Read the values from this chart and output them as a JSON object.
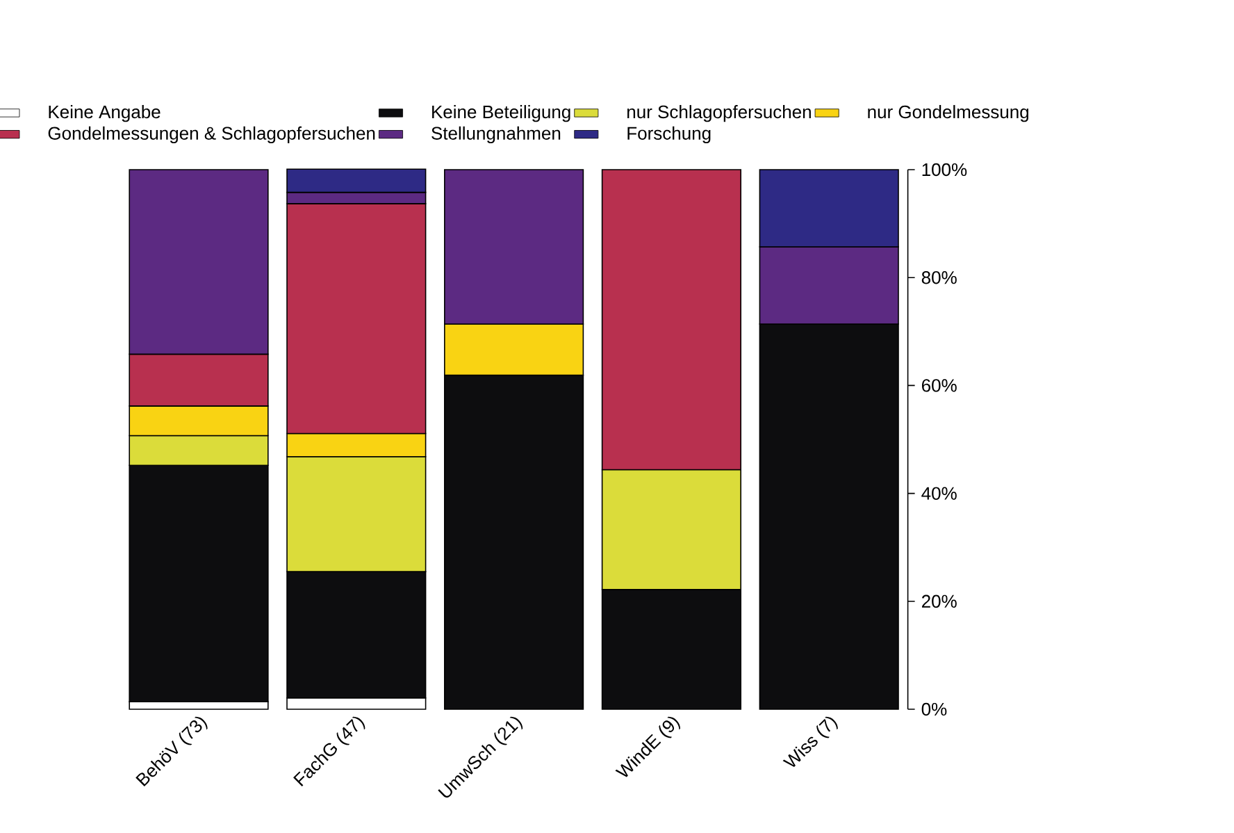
{
  "chart_data": {
    "type": "bar",
    "stacked": true,
    "legend": "top",
    "categories": [
      "BehöV (73)",
      "FachG (47)",
      "UmwSch (21)",
      "WindE (9)",
      "Wiss (7)"
    ],
    "series": [
      {
        "name": "Keine Angabe",
        "color": "#ffffff",
        "values": [
          1.4,
          2.1,
          null,
          null,
          null
        ]
      },
      {
        "name": "Keine Beteiligung",
        "color": "#0d0d0f",
        "values": [
          43.8,
          23.4,
          61.9,
          22.2,
          71.4
        ]
      },
      {
        "name": "nur Schlagopfersuchen",
        "color": "#dbdc3a",
        "values": [
          5.5,
          21.3,
          null,
          22.2,
          null
        ]
      },
      {
        "name": "nur Gondelmessung",
        "color": "#f9d313",
        "values": [
          5.5,
          4.3,
          9.5,
          null,
          null
        ]
      },
      {
        "name": "Gondelmessungen & Schlagopfersuchen",
        "color": "#b8304f",
        "values": [
          9.6,
          42.6,
          null,
          55.6,
          null
        ]
      },
      {
        "name": "Stellungnahmen",
        "color": "#5c2a82",
        "values": [
          34.2,
          2.1,
          28.6,
          null,
          14.3
        ]
      },
      {
        "name": "Forschung",
        "color": "#2e2a85",
        "values": [
          null,
          4.3,
          null,
          null,
          14.3
        ]
      }
    ],
    "ylim": [
      0,
      100
    ],
    "yticks": [
      {
        "value": 0,
        "label": "0%"
      },
      {
        "value": 20,
        "label": "20%"
      },
      {
        "value": 40,
        "label": "40%"
      },
      {
        "value": 60,
        "label": "60%"
      },
      {
        "value": 80,
        "label": "80%"
      },
      {
        "value": 100,
        "label": "100%"
      }
    ]
  }
}
